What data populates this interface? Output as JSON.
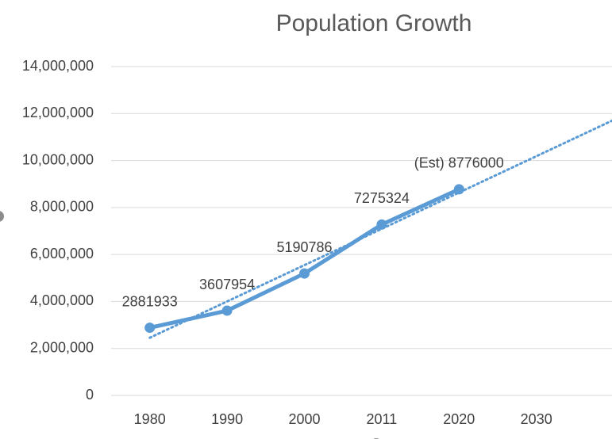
{
  "chart_data": {
    "type": "line",
    "title": "Population Growth",
    "categories": [
      "1980",
      "1990",
      "2000",
      "2011",
      "2020",
      "2030"
    ],
    "series": [
      {
        "color": "#5b9bd5",
        "values": [
          2881933,
          3607954,
          5190786,
          7275324,
          8776000,
          null
        ],
        "value_labels": [
          "2881933",
          "3607954",
          "5190786",
          "7275324",
          "(Est) 8776000",
          null
        ]
      }
    ],
    "ylim": [
      0,
      14000000
    ],
    "yticks": [
      0,
      {
        "value": 2000000,
        "label": "2,000,000"
      },
      {
        "value": 4000000,
        "label": "4,000,000"
      },
      {
        "value": 6000000,
        "label": "6,000,000"
      },
      {
        "value": 8000000,
        "label": "8,000,000"
      },
      {
        "value": 10000000,
        "label": "10,000,000"
      },
      {
        "value": 12000000,
        "label": "12,000,000"
      },
      {
        "value": 14000000,
        "label": "14,000,000"
      }
    ],
    "grid": true,
    "trendline": "linear",
    "marker": "circle"
  }
}
